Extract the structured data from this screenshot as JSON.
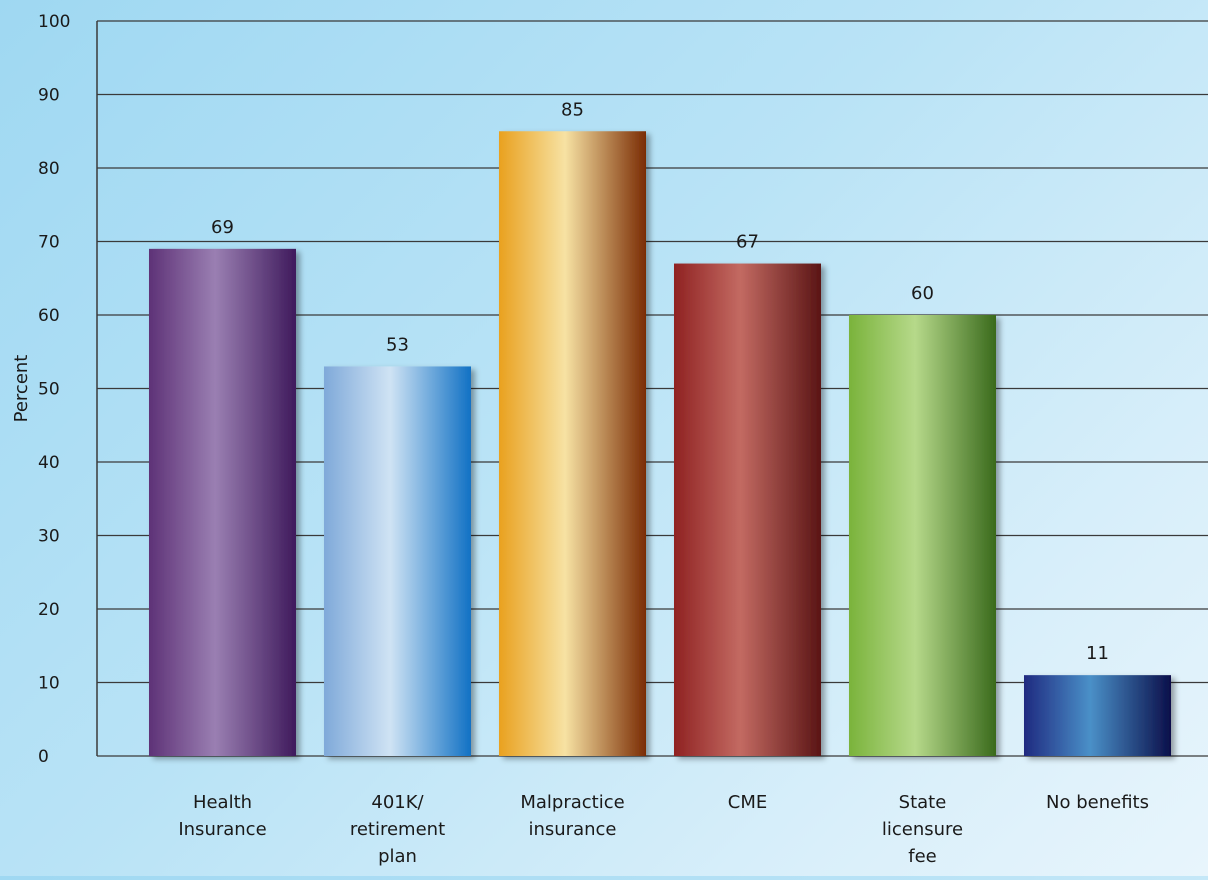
{
  "chart_data": {
    "type": "bar",
    "title": "",
    "xlabel": "",
    "ylabel": "Percent",
    "ylim": [
      0,
      100
    ],
    "yticks": [
      0,
      10,
      20,
      30,
      40,
      50,
      60,
      70,
      80,
      90,
      100
    ],
    "grid": "horizontal",
    "categories": [
      [
        "Health",
        "Insurance"
      ],
      [
        "401K/",
        "retirement",
        "plan"
      ],
      [
        "Malpractice",
        "insurance"
      ],
      [
        "CME"
      ],
      [
        "State",
        "licensure",
        "fee"
      ],
      [
        "No benefits"
      ]
    ],
    "values": [
      69,
      53,
      85,
      67,
      60,
      11
    ],
    "colors": [
      [
        "#5e3277",
        "#9a7fb2",
        "#3f1a5c"
      ],
      [
        "#7fa9d9",
        "#cfe3f4",
        "#1171c4"
      ],
      [
        "#e9a11f",
        "#f7e2a3",
        "#7a2c04"
      ],
      [
        "#8f2222",
        "#c36a62",
        "#5a1515"
      ],
      [
        "#7ab33b",
        "#b6d98a",
        "#3a6a1c"
      ],
      [
        "#1f2a80",
        "#4a90c8",
        "#0b0f4a"
      ]
    ]
  }
}
